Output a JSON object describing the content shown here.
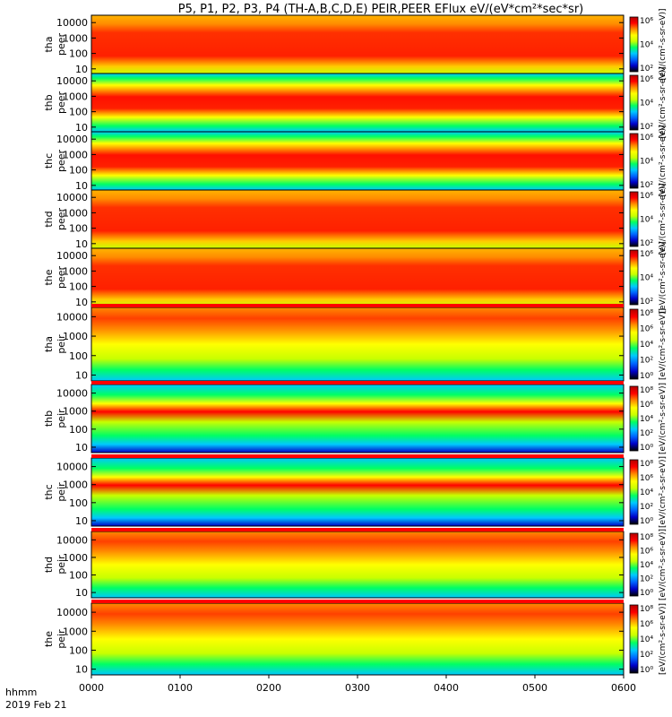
{
  "chart_data": {
    "type": "heatmap",
    "title": "P5, P1, P2, P3, P4 (TH-A,B,C,D,E) PEIR,PEER EFlux eV/(eV*cm²*sec*sr)",
    "x_axis": {
      "range": [
        "0000",
        "0600"
      ],
      "ticks": [
        "0000",
        "0100",
        "0200",
        "0300",
        "0400",
        "0500",
        "0600"
      ],
      "label_left": "hhmm",
      "date_label": "2019 Feb 21"
    },
    "y_axis": {
      "scale": "log",
      "range": [
        5,
        30000
      ],
      "ticks": [
        "10",
        "100",
        "1000",
        "10000"
      ]
    },
    "colorbar": {
      "scale": "log",
      "unit_label": "[eV/(cm²-s-sr-eV)]",
      "ticks_full": [
        "10⁰",
        "10²",
        "10⁴",
        "10⁶",
        "10⁸"
      ],
      "ticks_short": [
        "10²",
        "10⁴",
        "10⁶"
      ]
    },
    "colormap": [
      "#000000",
      "#0000c8",
      "#0064ff",
      "#00c8ff",
      "#00ff64",
      "#c8ff00",
      "#ffff00",
      "#ff8c00",
      "#ff0000",
      "#b40000"
    ],
    "panels": [
      {
        "probe": "tha",
        "species": "peer",
        "label_top": "tha",
        "label_bottom": "peer"
      },
      {
        "probe": "thb",
        "species": "peer",
        "label_top": "thb",
        "label_bottom": "peer"
      },
      {
        "probe": "thc",
        "species": "peer",
        "label_top": "thc",
        "label_bottom": "peer"
      },
      {
        "probe": "thd",
        "species": "peer",
        "label_top": "thd",
        "label_bottom": "peer"
      },
      {
        "probe": "the",
        "species": "peer",
        "label_top": "the",
        "label_bottom": "peer"
      },
      {
        "probe": "tha",
        "species": "peir",
        "label_top": "tha",
        "label_bottom": "peir"
      },
      {
        "probe": "thb",
        "species": "peir",
        "label_top": "thb",
        "label_bottom": "peir"
      },
      {
        "probe": "thc",
        "species": "peir",
        "label_top": "thc",
        "label_bottom": "peir"
      },
      {
        "probe": "thd",
        "species": "peir",
        "label_top": "thd",
        "label_bottom": "peir"
      },
      {
        "probe": "the",
        "species": "peir",
        "label_top": "the",
        "label_bottom": "peir"
      }
    ],
    "colors": {
      "frame": "#000000",
      "mode_bar_red": "#ff0000",
      "mode_bar_white": "#ffffff"
    }
  }
}
